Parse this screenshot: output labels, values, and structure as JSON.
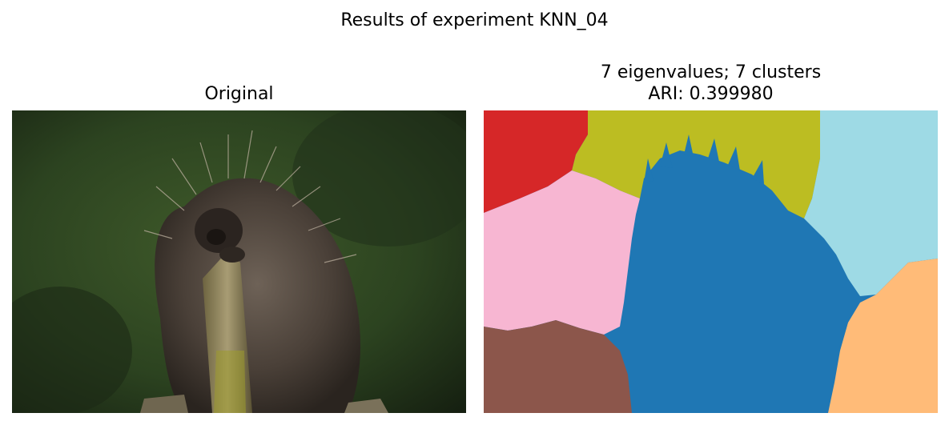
{
  "figure": {
    "suptitle": "Results of experiment KNN_04"
  },
  "left_panel": {
    "title": "Original",
    "image_subject": "porcupine-photo"
  },
  "right_panel": {
    "title_line1": "7 eigenvalues; 7 clusters",
    "title_line2": "ARI: 0.399980",
    "image_subject": "segmentation-map",
    "cluster_count": 7,
    "cluster_colors": [
      "#d62728",
      "#bcbd22",
      "#9edae5",
      "#f7b6d2",
      "#1f77b4",
      "#ffbb78",
      "#8c564b"
    ]
  }
}
